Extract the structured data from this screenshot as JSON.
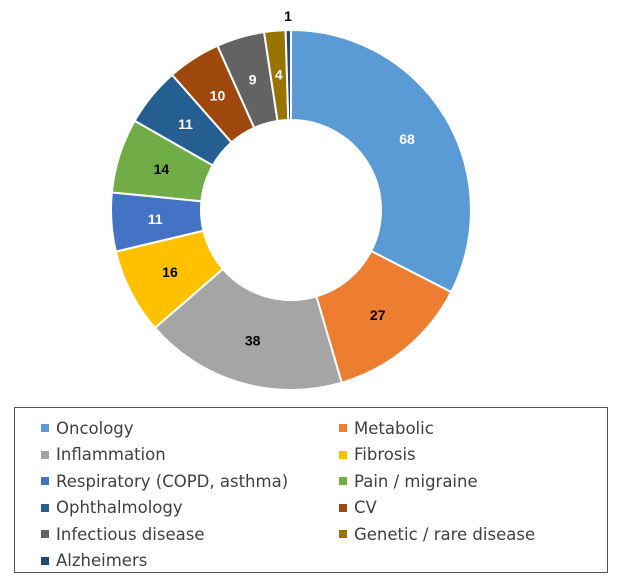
{
  "chart_data": {
    "type": "pie",
    "variant": "donut",
    "categories": [
      "Oncology",
      "Metabolic",
      "Inflammation",
      "Fibrosis",
      "Respiratory (COPD, asthma)",
      "Pain / migraine",
      "Ophthalmology",
      "CV",
      "Infectious disease",
      "Genetic / rare disease",
      "Alzheimers"
    ],
    "values": [
      68,
      27,
      38,
      16,
      11,
      14,
      11,
      10,
      9,
      4,
      1
    ],
    "colors": [
      "#5b9bd5",
      "#ed7d31",
      "#a5a5a5",
      "#ffc000",
      "#4472c4",
      "#70ad47",
      "#255e91",
      "#9e480e",
      "#636363",
      "#997300",
      "#264478"
    ],
    "label_colors": [
      "#ffffff",
      "#000000",
      "#000000",
      "#000000",
      "#ffffff",
      "#000000",
      "#ffffff",
      "#ffffff",
      "#ffffff",
      "#ffffff",
      "#000000"
    ],
    "labels": [
      "68",
      "27",
      "38",
      "16",
      "11",
      "14",
      "11",
      "10",
      "9",
      "4",
      "1"
    ],
    "legend_position": "bottom",
    "title": ""
  }
}
